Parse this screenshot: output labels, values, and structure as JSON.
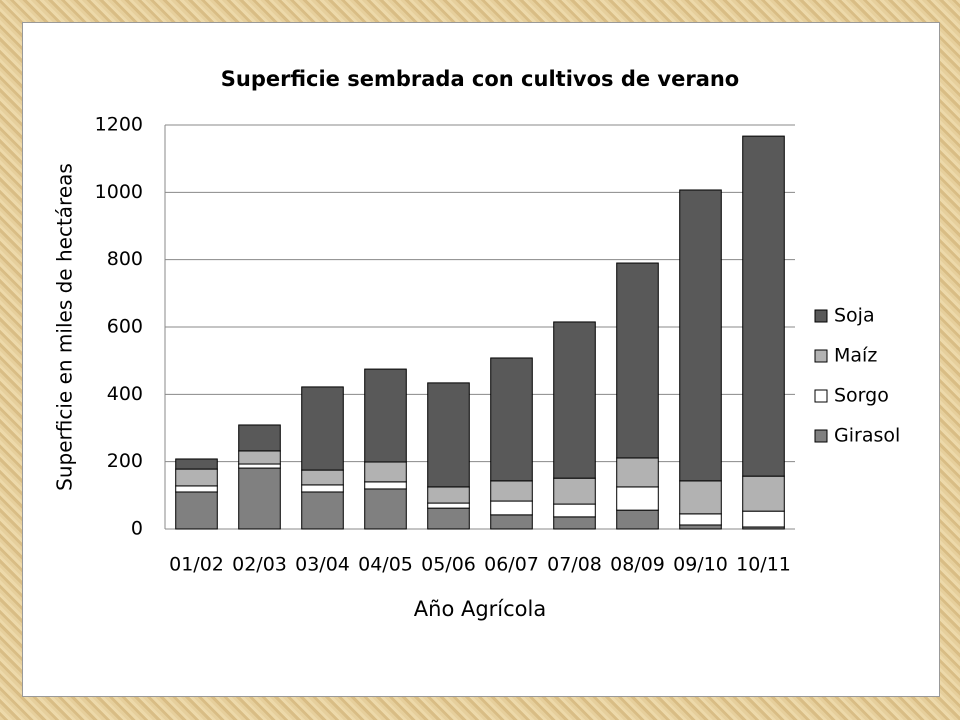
{
  "chart_data": {
    "type": "stacked_bar",
    "title": "Superficie sembrada con cultivos de verano",
    "x_label": "Año Agrícola",
    "y_label": "Superficie en miles de hectáreas",
    "categories": [
      "01/02",
      "02/03",
      "03/04",
      "04/05",
      "05/06",
      "06/07",
      "07/08",
      "08/09",
      "09/10",
      "10/11"
    ],
    "series": [
      {
        "name": "Girasol",
        "color": "#808080",
        "values": [
          110,
          181,
          110,
          119,
          62,
          42,
          36,
          56,
          12,
          6
        ]
      },
      {
        "name": "Sorgo",
        "color": "#ffffff",
        "values": [
          18,
          12,
          21,
          21,
          15,
          41,
          38,
          69,
          33,
          47
        ]
      },
      {
        "name": "Maíz",
        "color": "#b2b2b2",
        "values": [
          50,
          39,
          44,
          59,
          48,
          60,
          77,
          86,
          98,
          104
        ]
      },
      {
        "name": "Soja",
        "color": "#595959",
        "values": [
          30,
          77,
          247,
          276,
          309,
          365,
          464,
          579,
          864,
          1010
        ]
      }
    ],
    "ylim": [
      0,
      1200
    ],
    "yticks": [
      0,
      200,
      400,
      600,
      800,
      1000,
      1200
    ],
    "grid": true,
    "legend": "right"
  }
}
